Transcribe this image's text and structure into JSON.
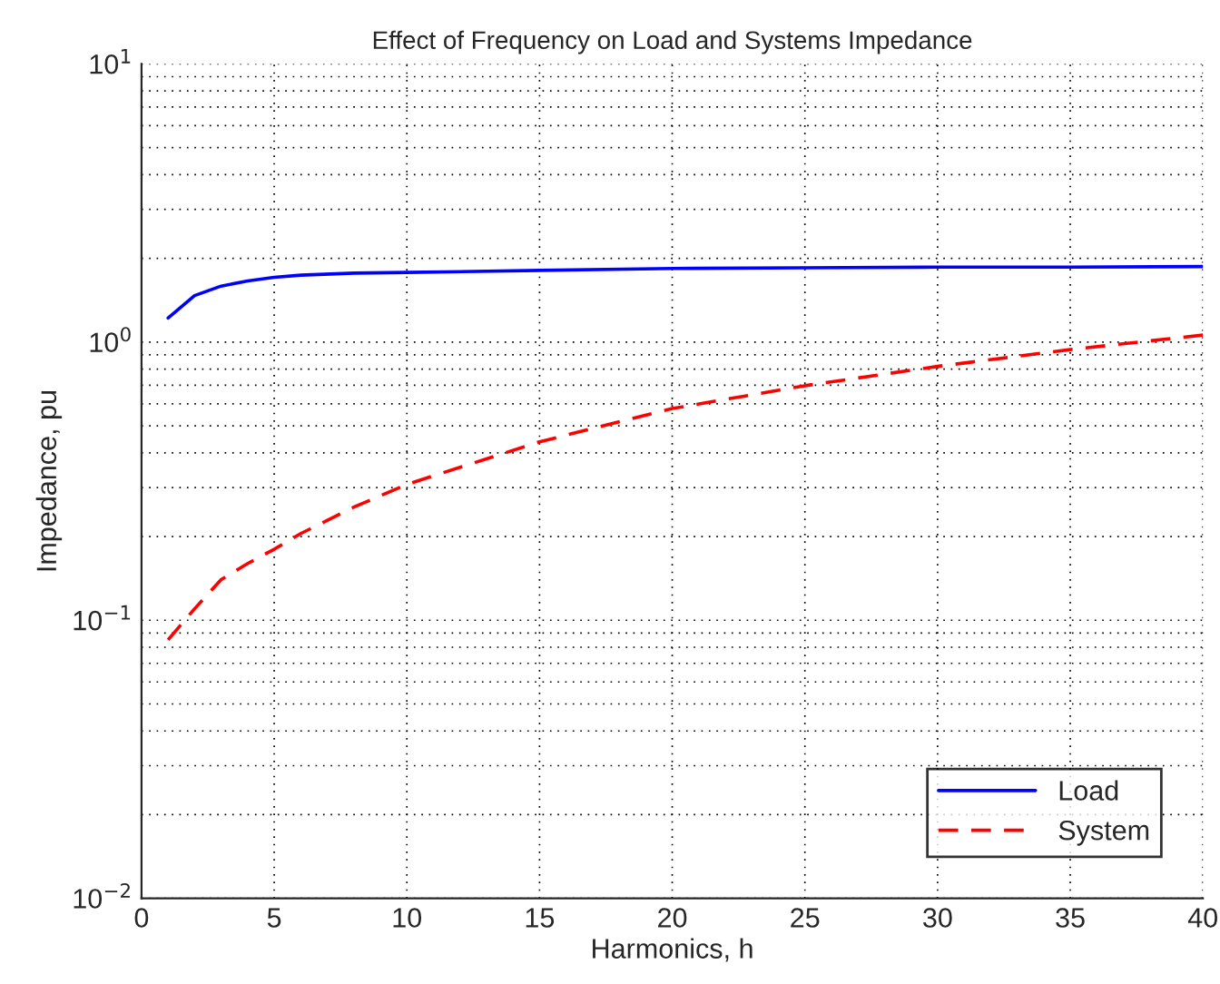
{
  "chart_data": {
    "type": "line",
    "title": "Effect of Frequency on Load and Systems Impedance",
    "xlabel": "Harmonics, h",
    "ylabel": "Impedance, pu",
    "x": [
      1,
      2,
      3,
      4,
      5,
      6,
      8,
      10,
      15,
      20,
      25,
      30,
      35,
      40
    ],
    "series": [
      {
        "name": "Load",
        "color": "#0000ff",
        "line_style": "solid",
        "values": [
          1.22,
          1.47,
          1.59,
          1.66,
          1.71,
          1.74,
          1.77,
          1.78,
          1.81,
          1.84,
          1.85,
          1.86,
          1.86,
          1.87
        ]
      },
      {
        "name": "System",
        "color": "#ff0000",
        "line_style": "dashed",
        "values": [
          0.085,
          0.11,
          0.14,
          0.16,
          0.18,
          0.205,
          0.255,
          0.308,
          0.438,
          0.577,
          0.697,
          0.818,
          0.94,
          1.06
        ]
      }
    ],
    "log": "y",
    "xlim": [
      0,
      40
    ],
    "xticks": [
      0,
      5,
      10,
      15,
      20,
      25,
      30,
      35,
      40
    ],
    "ylim": [
      0.01,
      10
    ],
    "yticks": [
      {
        "value": 0.01,
        "label": "10$^{−2}$"
      },
      {
        "value": 0.1,
        "label": "10$^{−1}$"
      },
      {
        "value": 1,
        "label": "10$^{0}$"
      },
      {
        "value": 10,
        "label": "10$^{1}$"
      }
    ],
    "grid": true,
    "legend": "lower right"
  }
}
